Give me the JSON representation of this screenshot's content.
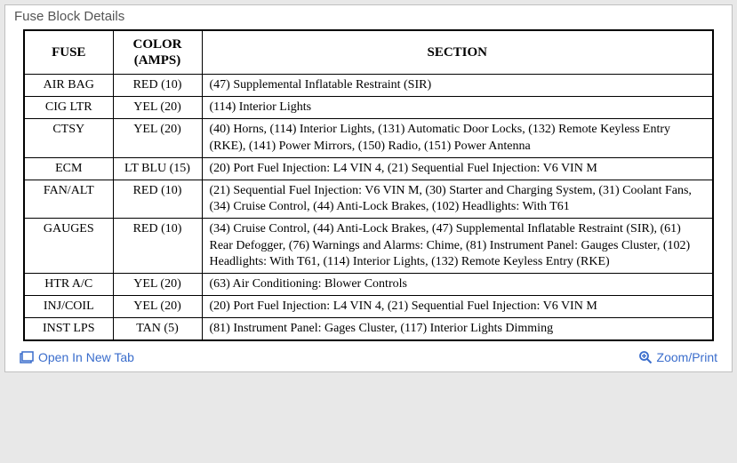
{
  "title": "Fuse Block Details",
  "colors": {
    "link": "#3a6dcc",
    "text": "#000000",
    "border": "#000000",
    "panel_border": "#c0c0c0",
    "panel_title": "#555555",
    "bg": "#e8e8e8",
    "panel_bg": "#ffffff"
  },
  "table": {
    "columns": [
      "FUSE",
      "COLOR\n(AMPS)",
      "SECTION"
    ],
    "rows": [
      [
        "AIR BAG",
        "RED (10)",
        "(47) Supplemental Inflatable Restraint (SIR)"
      ],
      [
        "CIG LTR",
        "YEL (20)",
        "(114) Interior Lights"
      ],
      [
        "CTSY",
        "YEL (20)",
        "(40) Horns, (114) Interior Lights, (131) Automatic Door Locks, (132) Remote Keyless Entry (RKE), (141) Power Mirrors, (150) Radio, (151) Power Antenna"
      ],
      [
        "ECM",
        "LT BLU (15)",
        "(20) Port Fuel Injection: L4 VIN 4, (21) Sequential Fuel Injection: V6 VIN M"
      ],
      [
        "FAN/ALT",
        "RED (10)",
        "(21) Sequential Fuel Injection: V6 VIN M, (30) Starter and Charging System, (31) Coolant Fans, (34) Cruise Control, (44) Anti-Lock Brakes, (102) Headlights: With T61"
      ],
      [
        "GAUGES",
        "RED (10)",
        "(34) Cruise Control, (44) Anti-Lock Brakes, (47) Supplemental Inflatable Restraint (SIR), (61) Rear Defogger, (76) Warnings and Alarms: Chime, (81) Instrument Panel: Gauges Cluster, (102) Headlights: With T61, (114) Interior Lights, (132) Remote Keyless Entry (RKE)"
      ],
      [
        "HTR A/C",
        "YEL (20)",
        "(63) Air Conditioning: Blower Controls"
      ],
      [
        "INJ/COIL",
        "YEL (20)",
        "(20) Port Fuel Injection: L4 VIN 4, (21) Sequential Fuel Injection: V6 VIN M"
      ],
      [
        "INST LPS",
        "TAN (5)",
        "(81) Instrument Panel: Gages Cluster, (117) Interior Lights Dimming"
      ]
    ]
  },
  "footer": {
    "open_label": "Open In New Tab",
    "zoom_label": "Zoom/Print"
  }
}
